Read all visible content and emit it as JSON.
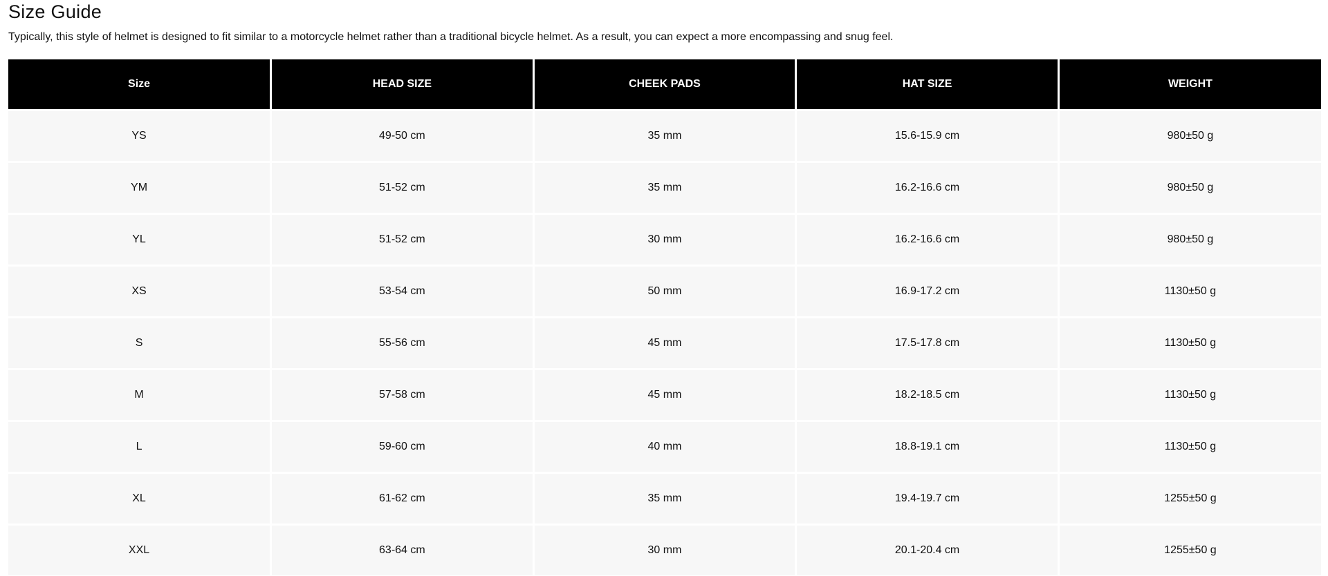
{
  "title": "Size Guide",
  "description": "Typically, this style of helmet is designed to fit similar to a motorcycle helmet rather than a traditional bicycle helmet. As a result, you can expect a more encompassing and snug feel.",
  "table": {
    "headers": [
      "Size",
      "HEAD SIZE",
      "CHEEK PADS",
      "HAT SIZE",
      "WEIGHT"
    ],
    "rows": [
      [
        "YS",
        "49-50 cm",
        "35 mm",
        "15.6-15.9 cm",
        "980±50 g"
      ],
      [
        "YM",
        "51-52 cm",
        "35 mm",
        "16.2-16.6 cm",
        "980±50 g"
      ],
      [
        "YL",
        "51-52 cm",
        "30 mm",
        "16.2-16.6 cm",
        "980±50 g"
      ],
      [
        "XS",
        "53-54 cm",
        "50 mm",
        "16.9-17.2 cm",
        "1130±50 g"
      ],
      [
        "S",
        "55-56 cm",
        "45 mm",
        "17.5-17.8 cm",
        "1130±50 g"
      ],
      [
        "M",
        "57-58 cm",
        "45 mm",
        "18.2-18.5 cm",
        "1130±50 g"
      ],
      [
        "L",
        "59-60 cm",
        "40 mm",
        "18.8-19.1 cm",
        "1130±50 g"
      ],
      [
        "XL",
        "61-62 cm",
        "35 mm",
        "19.4-19.7 cm",
        "1255±50 g"
      ],
      [
        "XXL",
        "63-64 cm",
        "30 mm",
        "20.1-20.4 cm",
        "1255±50 g"
      ]
    ]
  }
}
